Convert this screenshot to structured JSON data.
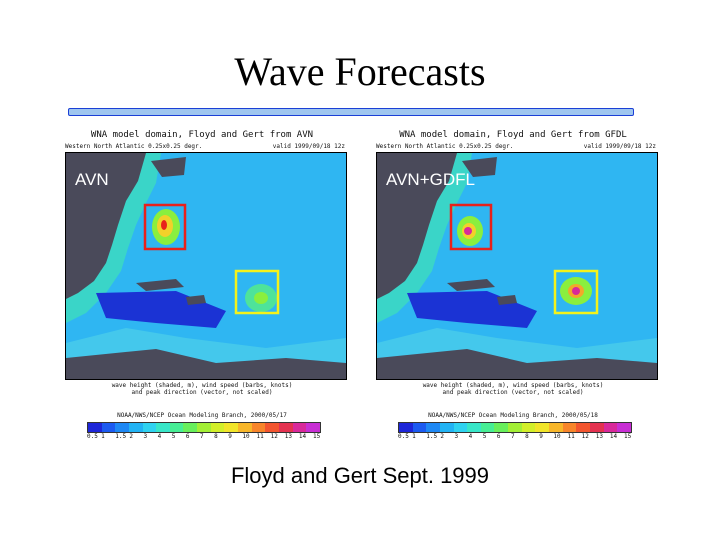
{
  "slide": {
    "title": "Wave Forecasts",
    "caption": "Floyd and Gert Sept. 1999"
  },
  "panels": [
    {
      "title": "WNA model domain, Floyd and Gert from AVN",
      "subtitle_left": "Western North Atlantic 0.25x0.25 degr.",
      "subtitle_right": "valid 1999/09/18 12z",
      "label": "AVN",
      "caption_line1": "wave height (shaded, m), wind speed (barbs, knots)",
      "caption_line2": "and peak direction (vector, not scaled)",
      "credit": "NOAA/NWS/NCEP Ocean Modeling Branch, 2000/05/17"
    },
    {
      "title": "WNA model domain, Floyd and Gert from GFDL",
      "subtitle_left": "Western North Atlantic 0.25x0.25 degr.",
      "subtitle_right": "valid 1999/09/18 12z",
      "label": "AVN+GDFL",
      "caption_line1": "wave height (shaded, m), wind speed (barbs, knots)",
      "caption_line2": "and peak direction (vector, not scaled)",
      "credit": "NOAA/NWS/NCEP Ocean Modeling Branch, 2000/05/18"
    }
  ],
  "colorbar": [
    "0.5",
    "1",
    "1.5",
    "2",
    "3",
    "4",
    "5",
    "6",
    "7",
    "8",
    "9",
    "10",
    "11",
    "12",
    "13",
    "14",
    "15"
  ],
  "colorbar_colors": [
    "#1e26d8",
    "#1c5af0",
    "#1e88f4",
    "#22b3f4",
    "#2fd2f0",
    "#38e6c8",
    "#47ee95",
    "#68ef5c",
    "#a3ef36",
    "#d2ef2a",
    "#f1e52a",
    "#f7b62a",
    "#f7852b",
    "#f2552f",
    "#e33250",
    "#d8299a",
    "#c82ed4"
  ],
  "colors": {
    "ocean": "#2fb6f2",
    "coast": "#31dcd2",
    "land": "#4a4a5a",
    "deep": "#1b33d4",
    "box1": "#e8211b",
    "box2": "#f4f21a",
    "rule_fill": "#9fc6ef",
    "rule_border": "#1b3fd6"
  }
}
